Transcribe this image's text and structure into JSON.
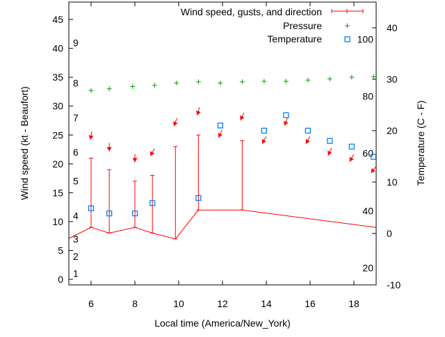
{
  "chart_data": {
    "type": "line",
    "xlabel": "Local time (America/New_York)",
    "ylabel": "Wind speed (kt - Beaufort)",
    "y2label": "Temperature (C - F)",
    "xlim": [
      5,
      19
    ],
    "ylim": [
      -1,
      48
    ],
    "y2lim": [
      -10,
      45
    ],
    "x_ticks": [
      6,
      8,
      10,
      12,
      14,
      16,
      18
    ],
    "y_ticks": [
      0,
      5,
      10,
      15,
      20,
      25,
      30,
      35,
      40,
      45
    ],
    "y2_ticks": [
      -10,
      0,
      10,
      20,
      30,
      40
    ],
    "beaufort_labels": [
      {
        "label": "1",
        "kt": 1
      },
      {
        "label": "2",
        "kt": 4
      },
      {
        "label": "3",
        "kt": 7
      },
      {
        "label": "4",
        "kt": 11
      },
      {
        "label": "5",
        "kt": 17
      },
      {
        "label": "6",
        "kt": 22
      },
      {
        "label": "7",
        "kt": 28
      },
      {
        "label": "8",
        "kt": 34
      },
      {
        "label": "9",
        "kt": 41
      }
    ],
    "fahrenheit_labels": [
      {
        "label": "20",
        "c": -6.7
      },
      {
        "label": "40",
        "c": 4.4
      },
      {
        "label": "60",
        "c": 15.6
      },
      {
        "label": "80",
        "c": 26.7
      },
      {
        "label": "100",
        "c": 37.8
      }
    ],
    "legend": {
      "placement": "top-right",
      "entries": [
        "Wind speed, gusts, and direction",
        "Pressure",
        "Temperature"
      ]
    },
    "colors": {
      "wind": "#ff0000",
      "pressure": "#00a000",
      "temperature": "#0080ff"
    },
    "wind": {
      "x": [
        5,
        6,
        6.83,
        8,
        8.8,
        9.85,
        10.9,
        12.9,
        19
      ],
      "speed": [
        7.1,
        9,
        8,
        9,
        8,
        7,
        12,
        12,
        9
      ]
    },
    "gusts": {
      "x": [
        6,
        6.83,
        8,
        8.8,
        9.85,
        10.9,
        12.9
      ],
      "low": [
        9,
        8,
        9,
        8,
        7,
        12,
        12
      ],
      "high": [
        21,
        19,
        17,
        18,
        23,
        25,
        24
      ]
    },
    "direction": {
      "x": [
        6,
        6.83,
        8,
        8.8,
        9.85,
        10.9,
        11.9,
        12.9,
        13.9,
        14.9,
        15.9,
        16.9,
        17.9,
        18.9
      ],
      "level": [
        24.9,
        22.9,
        21.0,
        22.0,
        27.2,
        29.1,
        25.2,
        28.2,
        24.1,
        27.3,
        24.1,
        22.1,
        21.0,
        19.0
      ],
      "deg_from": [
        10,
        0,
        0,
        30,
        20,
        15,
        25,
        25,
        30,
        20,
        30,
        25,
        30,
        40
      ]
    },
    "pressure": {
      "x": [
        6,
        6.83,
        7.9,
        8.9,
        9.9,
        10.9,
        11.9,
        12.9,
        13.9,
        14.9,
        15.9,
        16.9,
        17.9,
        18.9
      ],
      "y": [
        32.7,
        33.0,
        33.4,
        33.6,
        34.0,
        34.2,
        34.0,
        34.2,
        34.3,
        34.3,
        34.5,
        34.7,
        35.0,
        35.1
      ]
    },
    "temperature": {
      "x": [
        6,
        6.83,
        8,
        8.8,
        10.9,
        11.9,
        13.9,
        14.9,
        15.9,
        16.9,
        17.9,
        18.9
      ],
      "c": [
        4.9,
        3.9,
        3.9,
        5.9,
        6.9,
        21,
        20,
        23,
        20,
        18,
        16.9,
        14.9
      ]
    }
  }
}
